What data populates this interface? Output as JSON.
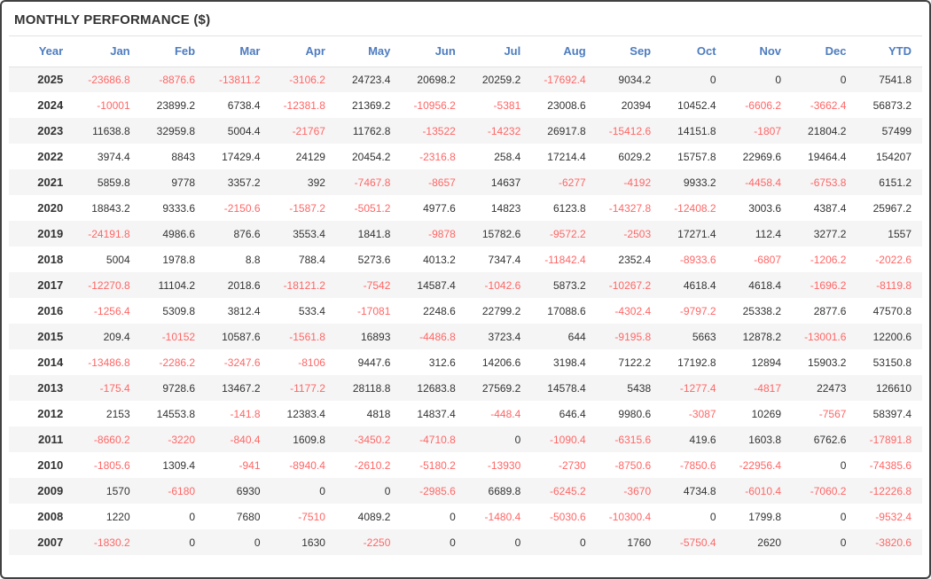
{
  "title": "MONTHLY PERFORMANCE ($)",
  "colors": {
    "header_text": "#4d7cbf",
    "negative_value": "#ff6666",
    "positive_value": "#333333",
    "title_text": "#333333",
    "row_alternate_bg": "#f5f5f5",
    "frame_border": "#414141"
  },
  "chart_data": {
    "type": "table",
    "title": "MONTHLY PERFORMANCE ($)",
    "columns": [
      "Year",
      "Jan",
      "Feb",
      "Mar",
      "Apr",
      "May",
      "Jun",
      "Jul",
      "Aug",
      "Sep",
      "Oct",
      "Nov",
      "Dec",
      "YTD"
    ],
    "rows": [
      {
        "year": "2025",
        "values": [
          -23686.8,
          -8876.6,
          -13811.2,
          -3106.2,
          24723.4,
          20698.2,
          20259.2,
          -17692.4,
          9034.2,
          0,
          0,
          0,
          7541.8
        ]
      },
      {
        "year": "2024",
        "values": [
          -10001,
          23899.2,
          6738.4,
          -12381.8,
          21369.2,
          -10956.2,
          -5381,
          23008.6,
          20394,
          10452.4,
          -6606.2,
          -3662.4,
          56873.2
        ]
      },
      {
        "year": "2023",
        "values": [
          11638.8,
          32959.8,
          5004.4,
          -21767,
          11762.8,
          -13522,
          -14232,
          26917.8,
          -15412.6,
          14151.8,
          -1807,
          21804.2,
          57499
        ]
      },
      {
        "year": "2022",
        "values": [
          3974.4,
          8843,
          17429.4,
          24129,
          20454.2,
          -2316.8,
          258.4,
          17214.4,
          6029.2,
          15757.8,
          22969.6,
          19464.4,
          154207
        ]
      },
      {
        "year": "2021",
        "values": [
          5859.8,
          9778,
          3357.2,
          392,
          -7467.8,
          -8657,
          14637,
          -6277,
          -4192,
          9933.2,
          -4458.4,
          -6753.8,
          6151.2
        ]
      },
      {
        "year": "2020",
        "values": [
          18843.2,
          9333.6,
          -2150.6,
          -1587.2,
          -5051.2,
          4977.6,
          14823,
          6123.8,
          -14327.8,
          -12408.2,
          3003.6,
          4387.4,
          25967.2
        ]
      },
      {
        "year": "2019",
        "values": [
          -24191.8,
          4986.6,
          876.6,
          3553.4,
          1841.8,
          -9878,
          15782.6,
          -9572.2,
          -2503,
          17271.4,
          112.4,
          3277.2,
          1557
        ]
      },
      {
        "year": "2018",
        "values": [
          5004,
          1978.8,
          8.8,
          788.4,
          5273.6,
          4013.2,
          7347.4,
          -11842.4,
          2352.4,
          -8933.6,
          -6807,
          -1206.2,
          -2022.6
        ]
      },
      {
        "year": "2017",
        "values": [
          -12270.8,
          11104.2,
          2018.6,
          -18121.2,
          -7542,
          14587.4,
          -1042.6,
          5873.2,
          -10267.2,
          4618.4,
          4618.4,
          -1696.2,
          -8119.8
        ]
      },
      {
        "year": "2016",
        "values": [
          -1256.4,
          5309.8,
          3812.4,
          533.4,
          -17081,
          2248.6,
          22799.2,
          17088.6,
          -4302.4,
          -9797.2,
          25338.2,
          2877.6,
          47570.8
        ]
      },
      {
        "year": "2015",
        "values": [
          209.4,
          -10152,
          10587.6,
          -1561.8,
          16893,
          -4486.8,
          3723.4,
          644,
          -9195.8,
          5663,
          12878.2,
          -13001.6,
          12200.6
        ]
      },
      {
        "year": "2014",
        "values": [
          -13486.8,
          -2286.2,
          -3247.6,
          -8106,
          9447.6,
          312.6,
          14206.6,
          3198.4,
          7122.2,
          17192.8,
          12894,
          15903.2,
          53150.8
        ]
      },
      {
        "year": "2013",
        "values": [
          -175.4,
          9728.6,
          13467.2,
          -1177.2,
          28118.8,
          12683.8,
          27569.2,
          14578.4,
          5438,
          -1277.4,
          -4817,
          22473,
          126610
        ]
      },
      {
        "year": "2012",
        "values": [
          2153,
          14553.8,
          -141.8,
          12383.4,
          4818,
          14837.4,
          -448.4,
          646.4,
          9980.6,
          -3087,
          10269,
          -7567,
          58397.4
        ]
      },
      {
        "year": "2011",
        "values": [
          -8660.2,
          -3220,
          -840.4,
          1609.8,
          -3450.2,
          -4710.8,
          0,
          -1090.4,
          -6315.6,
          419.6,
          1603.8,
          6762.6,
          -17891.8
        ]
      },
      {
        "year": "2010",
        "values": [
          -1805.6,
          1309.4,
          -941,
          -8940.4,
          -2610.2,
          -5180.2,
          -13930,
          -2730,
          -8750.6,
          -7850.6,
          -22956.4,
          0,
          -74385.6
        ]
      },
      {
        "year": "2009",
        "values": [
          1570,
          -6180,
          6930,
          0,
          0,
          -2985.6,
          6689.8,
          -6245.2,
          -3670,
          4734.8,
          -6010.4,
          -7060.2,
          -12226.8
        ]
      },
      {
        "year": "2008",
        "values": [
          1220,
          0,
          7680,
          -7510,
          4089.2,
          0,
          -1480.4,
          -5030.6,
          -10300.4,
          0,
          1799.8,
          0,
          -9532.4
        ]
      },
      {
        "year": "2007",
        "values": [
          -1830.2,
          0,
          0,
          1630,
          -2250,
          0,
          0,
          0,
          1760,
          -5750.4,
          2620,
          0,
          -3820.6
        ]
      }
    ]
  }
}
